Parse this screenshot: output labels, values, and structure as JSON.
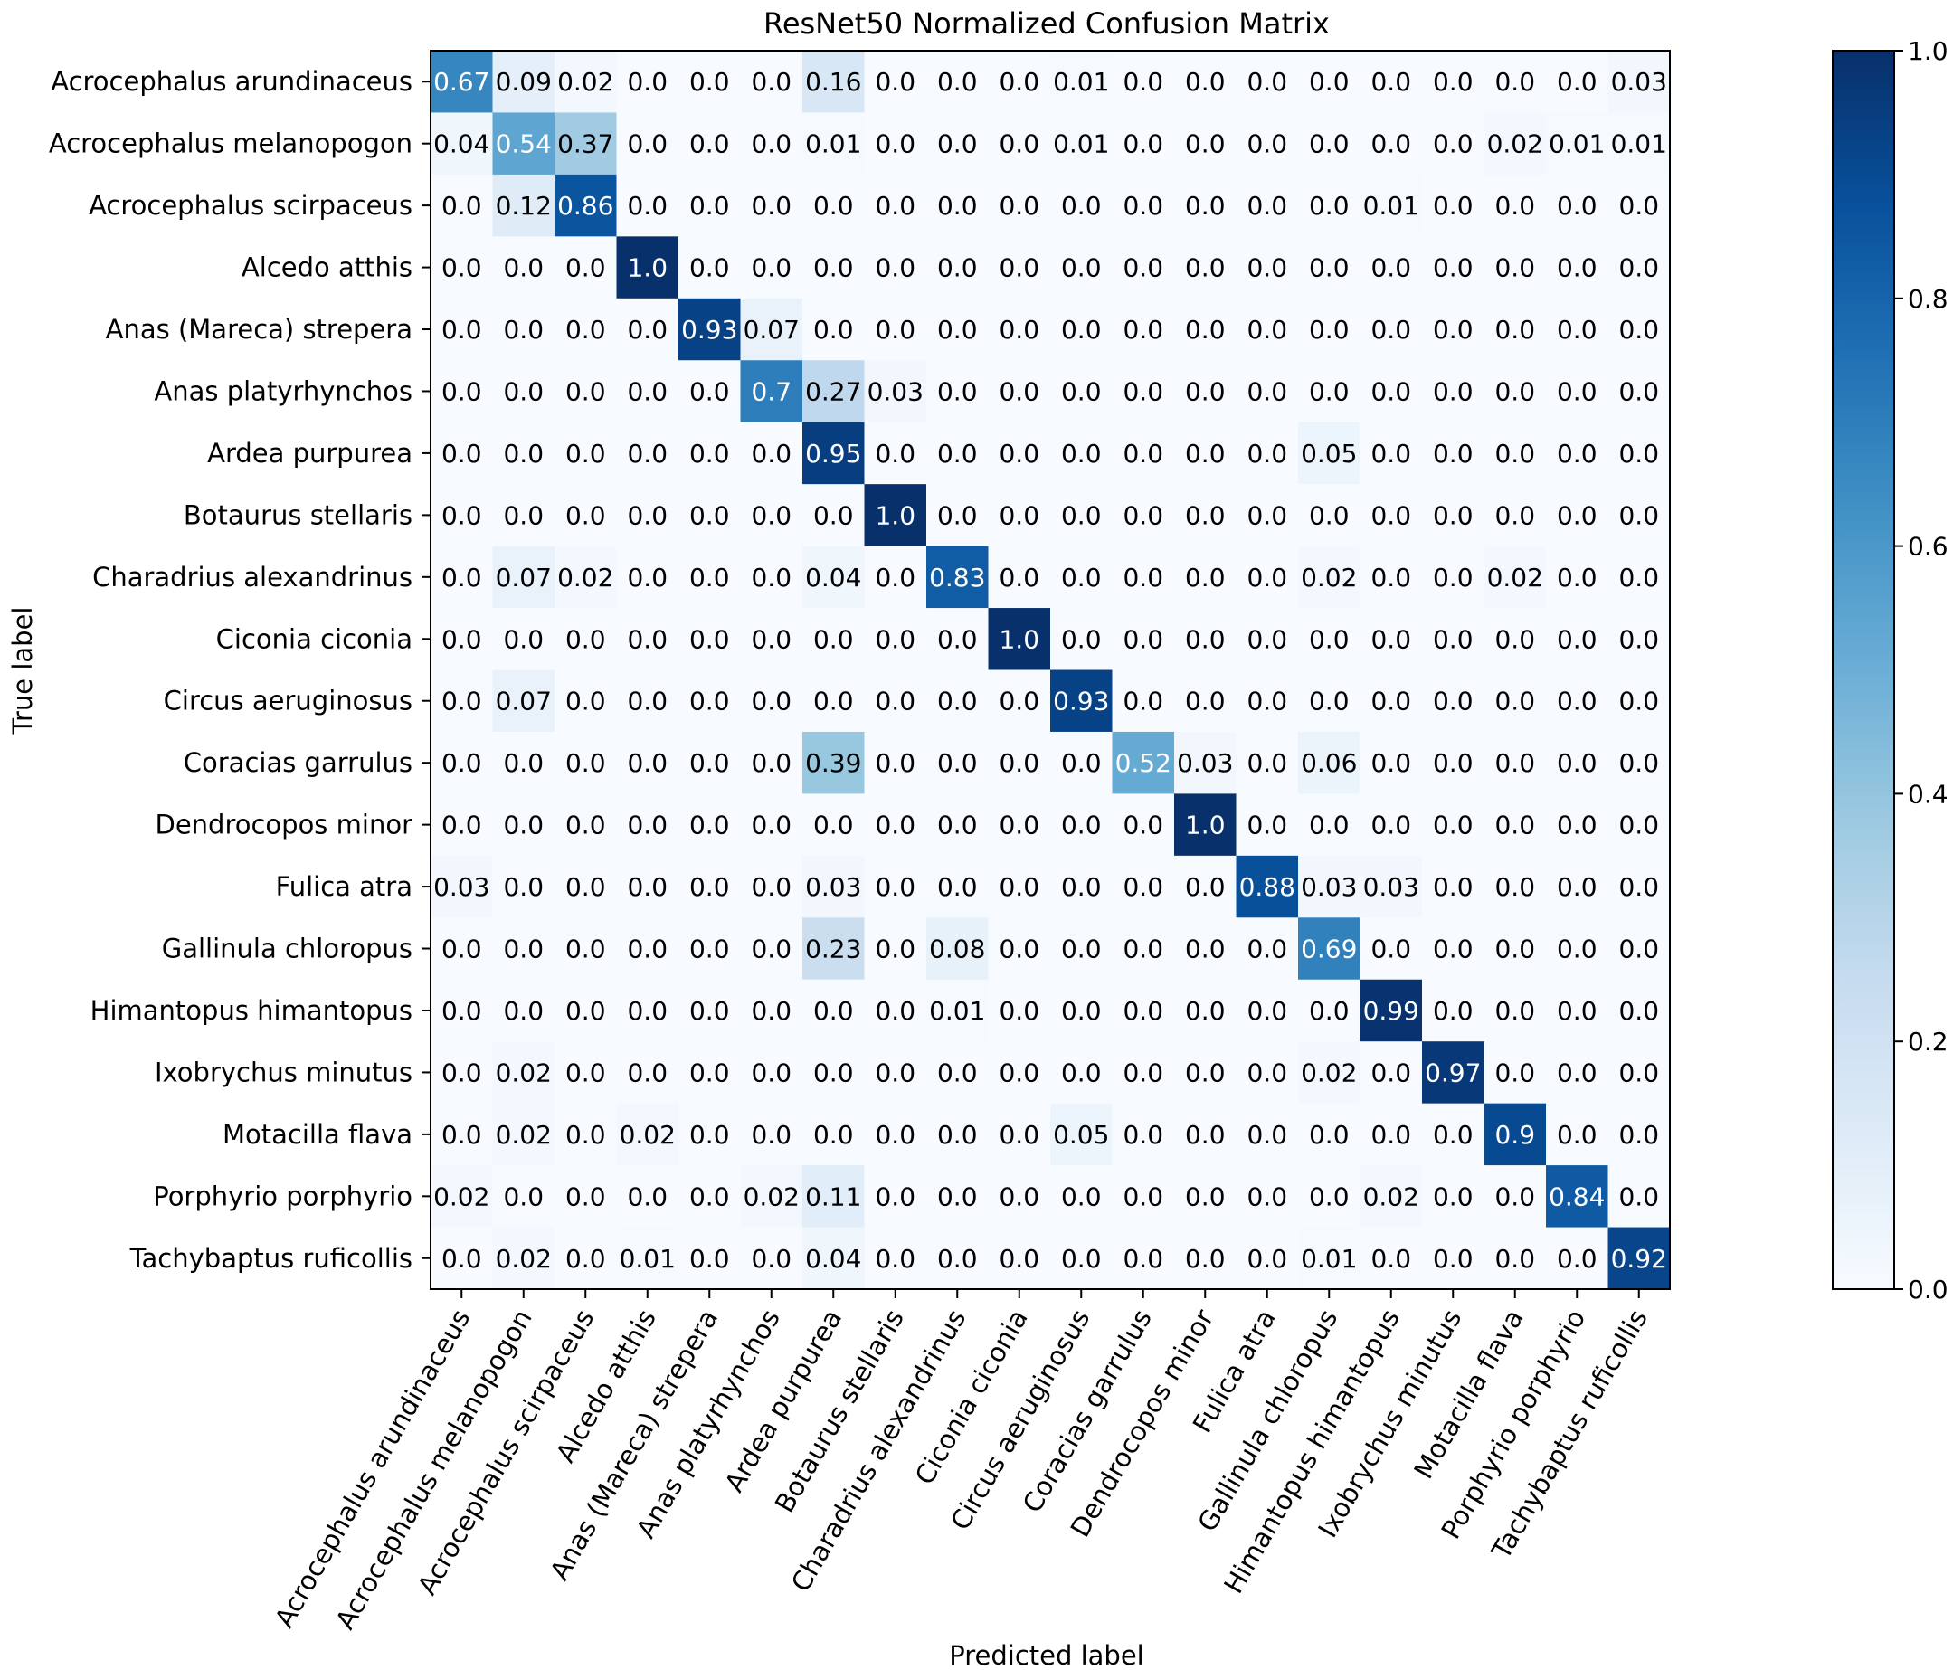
{
  "chart_data": {
    "type": "heatmap",
    "title": "ResNet50 Normalized Confusion Matrix",
    "xlabel": "Predicted label",
    "ylabel": "True label",
    "labels": [
      "Acrocephalus arundinaceus",
      "Acrocephalus melanopogon",
      "Acrocephalus scirpaceus",
      "Alcedo atthis",
      "Anas (Mareca) strepera",
      "Anas platyrhynchos",
      "Ardea purpurea",
      "Botaurus stellaris",
      "Charadrius alexandrinus",
      "Ciconia ciconia",
      "Circus aeruginosus",
      "Coracias garrulus",
      "Dendrocopos minor",
      "Fulica atra",
      "Gallinula chloropus",
      "Himantopus himantopus",
      "Ixobrychus minutus",
      "Motacilla flava",
      "Porphyrio porphyrio",
      "Tachybaptus ruficollis"
    ],
    "cell_text": [
      [
        "0.67",
        "0.09",
        "0.02",
        "0.0",
        "0.0",
        "0.0",
        "0.16",
        "0.0",
        "0.0",
        "0.0",
        "0.01",
        "0.0",
        "0.0",
        "0.0",
        "0.0",
        "0.0",
        "0.0",
        "0.0",
        "0.0",
        "0.03"
      ],
      [
        "0.04",
        "0.54",
        "0.37",
        "0.0",
        "0.0",
        "0.0",
        "0.01",
        "0.0",
        "0.0",
        "0.0",
        "0.01",
        "0.0",
        "0.0",
        "0.0",
        "0.0",
        "0.0",
        "0.0",
        "0.02",
        "0.01",
        "0.01"
      ],
      [
        "0.0",
        "0.12",
        "0.86",
        "0.0",
        "0.0",
        "0.0",
        "0.0",
        "0.0",
        "0.0",
        "0.0",
        "0.0",
        "0.0",
        "0.0",
        "0.0",
        "0.0",
        "0.01",
        "0.0",
        "0.0",
        "0.0",
        "0.0"
      ],
      [
        "0.0",
        "0.0",
        "0.0",
        "1.0",
        "0.0",
        "0.0",
        "0.0",
        "0.0",
        "0.0",
        "0.0",
        "0.0",
        "0.0",
        "0.0",
        "0.0",
        "0.0",
        "0.0",
        "0.0",
        "0.0",
        "0.0",
        "0.0"
      ],
      [
        "0.0",
        "0.0",
        "0.0",
        "0.0",
        "0.93",
        "0.07",
        "0.0",
        "0.0",
        "0.0",
        "0.0",
        "0.0",
        "0.0",
        "0.0",
        "0.0",
        "0.0",
        "0.0",
        "0.0",
        "0.0",
        "0.0",
        "0.0"
      ],
      [
        "0.0",
        "0.0",
        "0.0",
        "0.0",
        "0.0",
        "0.7",
        "0.27",
        "0.03",
        "0.0",
        "0.0",
        "0.0",
        "0.0",
        "0.0",
        "0.0",
        "0.0",
        "0.0",
        "0.0",
        "0.0",
        "0.0",
        "0.0"
      ],
      [
        "0.0",
        "0.0",
        "0.0",
        "0.0",
        "0.0",
        "0.0",
        "0.95",
        "0.0",
        "0.0",
        "0.0",
        "0.0",
        "0.0",
        "0.0",
        "0.0",
        "0.05",
        "0.0",
        "0.0",
        "0.0",
        "0.0",
        "0.0"
      ],
      [
        "0.0",
        "0.0",
        "0.0",
        "0.0",
        "0.0",
        "0.0",
        "0.0",
        "1.0",
        "0.0",
        "0.0",
        "0.0",
        "0.0",
        "0.0",
        "0.0",
        "0.0",
        "0.0",
        "0.0",
        "0.0",
        "0.0",
        "0.0"
      ],
      [
        "0.0",
        "0.07",
        "0.02",
        "0.0",
        "0.0",
        "0.0",
        "0.04",
        "0.0",
        "0.83",
        "0.0",
        "0.0",
        "0.0",
        "0.0",
        "0.0",
        "0.02",
        "0.0",
        "0.0",
        "0.02",
        "0.0",
        "0.0"
      ],
      [
        "0.0",
        "0.0",
        "0.0",
        "0.0",
        "0.0",
        "0.0",
        "0.0",
        "0.0",
        "0.0",
        "1.0",
        "0.0",
        "0.0",
        "0.0",
        "0.0",
        "0.0",
        "0.0",
        "0.0",
        "0.0",
        "0.0",
        "0.0"
      ],
      [
        "0.0",
        "0.07",
        "0.0",
        "0.0",
        "0.0",
        "0.0",
        "0.0",
        "0.0",
        "0.0",
        "0.0",
        "0.93",
        "0.0",
        "0.0",
        "0.0",
        "0.0",
        "0.0",
        "0.0",
        "0.0",
        "0.0",
        "0.0"
      ],
      [
        "0.0",
        "0.0",
        "0.0",
        "0.0",
        "0.0",
        "0.0",
        "0.39",
        "0.0",
        "0.0",
        "0.0",
        "0.0",
        "0.52",
        "0.03",
        "0.0",
        "0.06",
        "0.0",
        "0.0",
        "0.0",
        "0.0",
        "0.0"
      ],
      [
        "0.0",
        "0.0",
        "0.0",
        "0.0",
        "0.0",
        "0.0",
        "0.0",
        "0.0",
        "0.0",
        "0.0",
        "0.0",
        "0.0",
        "1.0",
        "0.0",
        "0.0",
        "0.0",
        "0.0",
        "0.0",
        "0.0",
        "0.0"
      ],
      [
        "0.03",
        "0.0",
        "0.0",
        "0.0",
        "0.0",
        "0.0",
        "0.03",
        "0.0",
        "0.0",
        "0.0",
        "0.0",
        "0.0",
        "0.0",
        "0.88",
        "0.03",
        "0.03",
        "0.0",
        "0.0",
        "0.0",
        "0.0"
      ],
      [
        "0.0",
        "0.0",
        "0.0",
        "0.0",
        "0.0",
        "0.0",
        "0.23",
        "0.0",
        "0.08",
        "0.0",
        "0.0",
        "0.0",
        "0.0",
        "0.0",
        "0.69",
        "0.0",
        "0.0",
        "0.0",
        "0.0",
        "0.0"
      ],
      [
        "0.0",
        "0.0",
        "0.0",
        "0.0",
        "0.0",
        "0.0",
        "0.0",
        "0.0",
        "0.01",
        "0.0",
        "0.0",
        "0.0",
        "0.0",
        "0.0",
        "0.0",
        "0.99",
        "0.0",
        "0.0",
        "0.0",
        "0.0"
      ],
      [
        "0.0",
        "0.02",
        "0.0",
        "0.0",
        "0.0",
        "0.0",
        "0.0",
        "0.0",
        "0.0",
        "0.0",
        "0.0",
        "0.0",
        "0.0",
        "0.0",
        "0.02",
        "0.0",
        "0.97",
        "0.0",
        "0.0",
        "0.0"
      ],
      [
        "0.0",
        "0.02",
        "0.0",
        "0.02",
        "0.0",
        "0.0",
        "0.0",
        "0.0",
        "0.0",
        "0.0",
        "0.05",
        "0.0",
        "0.0",
        "0.0",
        "0.0",
        "0.0",
        "0.0",
        "0.9",
        "0.0",
        "0.0"
      ],
      [
        "0.02",
        "0.0",
        "0.0",
        "0.0",
        "0.0",
        "0.02",
        "0.11",
        "0.0",
        "0.0",
        "0.0",
        "0.0",
        "0.0",
        "0.0",
        "0.0",
        "0.0",
        "0.02",
        "0.0",
        "0.0",
        "0.84",
        "0.0"
      ],
      [
        "0.0",
        "0.02",
        "0.0",
        "0.01",
        "0.0",
        "0.0",
        "0.04",
        "0.0",
        "0.0",
        "0.0",
        "0.0",
        "0.0",
        "0.0",
        "0.0",
        "0.01",
        "0.0",
        "0.0",
        "0.0",
        "0.0",
        "0.92"
      ]
    ],
    "colorbar": {
      "range": [
        0.0,
        1.0
      ],
      "ticks": [
        "0.0",
        "0.2",
        "0.4",
        "0.6",
        "0.8",
        "1.0"
      ],
      "colormap": "Blues"
    },
    "text_threshold": 0.5,
    "text_colors": {
      "dark": "#000000",
      "light": "#ffffff"
    }
  }
}
